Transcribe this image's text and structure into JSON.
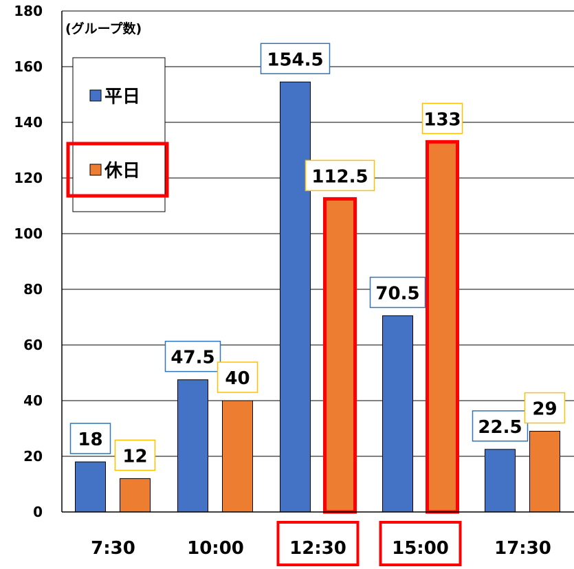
{
  "chart_data": {
    "type": "bar",
    "unit_label": "(グループ数)",
    "categories": [
      "7:30",
      "10:00",
      "12:30",
      "15:00",
      "17:30"
    ],
    "series": [
      {
        "name": "平日",
        "values": [
          18,
          47.5,
          154.5,
          70.5,
          22.5
        ],
        "color": "#4472C4",
        "label_border": "#2E75B6"
      },
      {
        "name": "休日",
        "values": [
          12,
          40,
          112.5,
          133,
          29
        ],
        "color": "#ED7D31",
        "label_border": "#FFC000"
      }
    ],
    "data_labels": [
      [
        "18",
        "47.5",
        "154.5",
        "70.5",
        "22.5"
      ],
      [
        "12",
        "40",
        "112.5",
        "133",
        "29"
      ]
    ],
    "ylim": [
      0,
      180
    ],
    "yticks": [
      "0",
      "20",
      "40",
      "60",
      "80",
      "100",
      "120",
      "140",
      "160",
      "180"
    ],
    "grid": true,
    "legend_position": "top-left",
    "highlight_color": "#FF0000",
    "highlighted_categories": [
      "12:30",
      "15:00"
    ],
    "highlighted_bars": [
      [
        1,
        2
      ],
      [
        1,
        3
      ]
    ],
    "highlighted_legend": [
      1
    ]
  }
}
